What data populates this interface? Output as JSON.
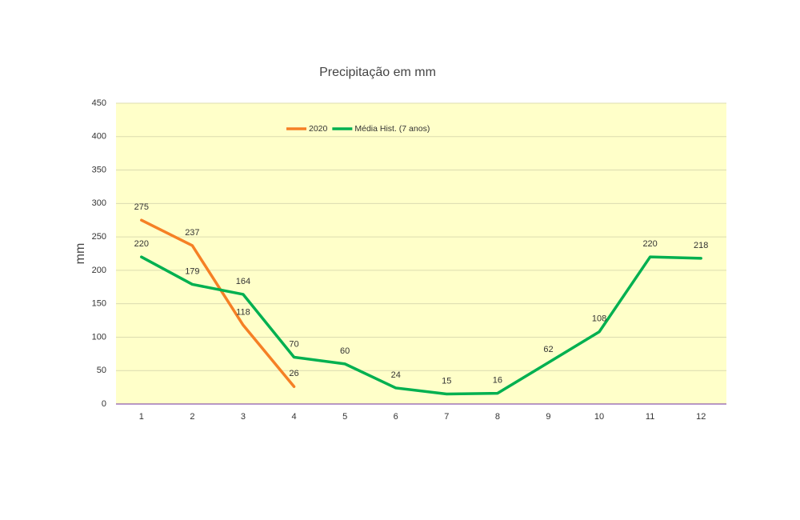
{
  "chart_data": {
    "type": "line",
    "title": "Precipitação em mm",
    "y_label": "mm",
    "categories": [
      "1",
      "2",
      "3",
      "4",
      "5",
      "6",
      "7",
      "8",
      "9",
      "10",
      "11",
      "12"
    ],
    "series": [
      {
        "name": "2020",
        "color": "#f58025",
        "values": [
          275,
          237,
          118,
          26,
          null,
          null,
          null,
          null,
          null,
          null,
          null,
          null
        ]
      },
      {
        "name": "Média Hist. (7 anos)",
        "color": "#00b050",
        "values": [
          220,
          179,
          164,
          70,
          60,
          24,
          15,
          16,
          62,
          108,
          220,
          218
        ]
      }
    ],
    "ylim": [
      0,
      450
    ],
    "yticks": [
      0,
      50,
      100,
      150,
      200,
      250,
      300,
      350,
      400,
      450
    ],
    "grid": true,
    "plot_background": "#ffffc9",
    "legend": "top"
  }
}
